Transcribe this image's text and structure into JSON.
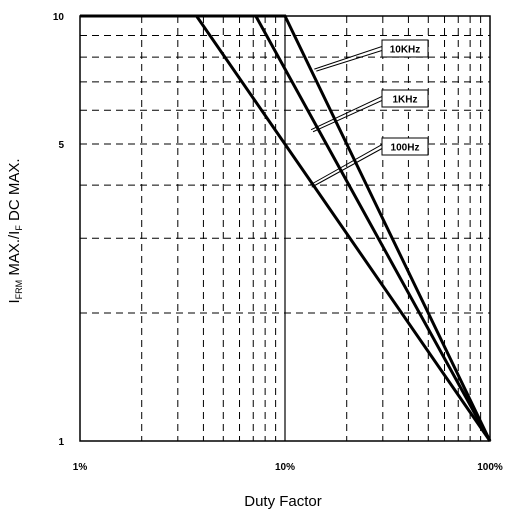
{
  "chart_data": {
    "type": "line",
    "xscale": "log",
    "yscale": "log",
    "xlim": [
      1,
      100
    ],
    "ylim": [
      1,
      10
    ],
    "xlabel": "Duty Factor",
    "ylabel": {
      "main": "I",
      "sub1": "FRM",
      "mid": " MAX./I",
      "sub2": "F",
      "tail": " DC MAX."
    },
    "x_ticks": [
      {
        "value": 1,
        "label": "1%"
      },
      {
        "value": 10,
        "label": "10%"
      },
      {
        "value": 100,
        "label": "100%"
      }
    ],
    "y_ticks": [
      {
        "value": 1,
        "label": "1"
      },
      {
        "value": 5,
        "label": "5"
      },
      {
        "value": 10,
        "label": "10"
      }
    ],
    "grid": true,
    "series": [
      {
        "name": "10KHz",
        "x": [
          1,
          10,
          100
        ],
        "y": [
          10,
          10,
          1
        ],
        "label_at": [
          13.9,
          7.5
        ]
      },
      {
        "name": "1KHz",
        "x": [
          1,
          7.2,
          100
        ],
        "y": [
          10,
          10,
          1
        ],
        "label_at": [
          13.4,
          5.4
        ]
      },
      {
        "name": "100Hz",
        "x": [
          1,
          3.7,
          100
        ],
        "y": [
          10,
          10,
          1
        ],
        "label_at": [
          13.2,
          4.0
        ]
      }
    ]
  }
}
